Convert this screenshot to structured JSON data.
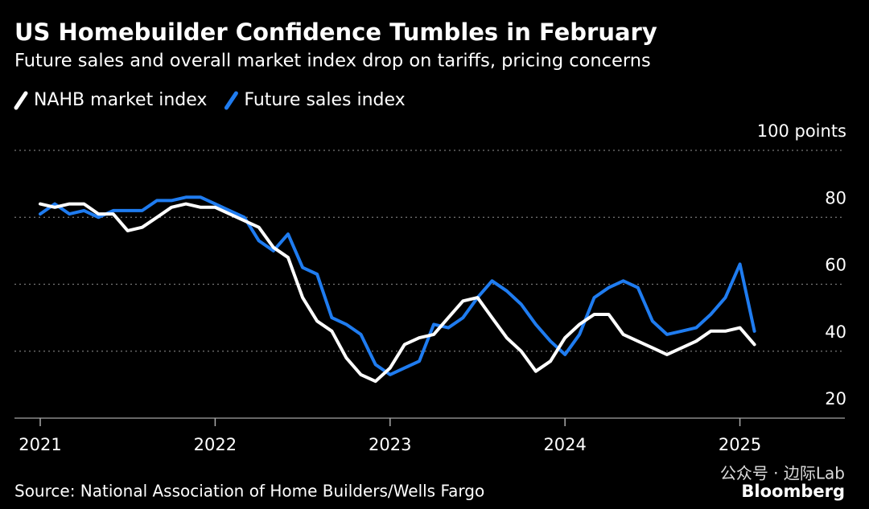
{
  "chart_data": {
    "type": "line",
    "title": "US Homebuilder Confidence Tumbles in February",
    "subtitle": "Future sales and overall market index drop on tariffs, pricing concerns",
    "source": "Source: National Association of Home Builders/Wells Fargo",
    "brand": "Bloomberg",
    "watermark": "公众号 · 边际Lab",
    "x": [
      2021.0,
      2021.083,
      2021.167,
      2021.25,
      2021.333,
      2021.417,
      2021.5,
      2021.583,
      2021.667,
      2021.75,
      2021.833,
      2021.917,
      2022.0,
      2022.083,
      2022.167,
      2022.25,
      2022.333,
      2022.417,
      2022.5,
      2022.583,
      2022.667,
      2022.75,
      2022.833,
      2022.917,
      2023.0,
      2023.083,
      2023.167,
      2023.25,
      2023.333,
      2023.417,
      2023.5,
      2023.583,
      2023.667,
      2023.75,
      2023.833,
      2023.917,
      2024.0,
      2024.083,
      2024.167,
      2024.25,
      2024.333,
      2024.417,
      2024.5,
      2024.583,
      2024.667,
      2024.75,
      2024.833,
      2024.917,
      2025.0,
      2025.083
    ],
    "xlim": [
      2020.85,
      2025.6
    ],
    "xticks": [
      2021,
      2022,
      2023,
      2024,
      2025
    ],
    "ylim": [
      20,
      100
    ],
    "yticks": [
      20,
      40,
      60,
      80,
      {
        "value": 100,
        "label": "100 points"
      }
    ],
    "grid": true,
    "series": [
      {
        "name": "NAHB market index",
        "color": "#ffffff",
        "values": [
          84,
          83,
          84,
          84,
          81,
          81,
          76,
          77,
          80,
          83,
          84,
          83,
          83,
          81,
          79,
          77,
          71,
          68,
          56,
          49,
          46,
          38,
          33,
          31,
          35,
          42,
          44,
          45,
          50,
          55,
          56,
          50,
          44,
          40,
          34,
          37,
          44,
          48,
          51,
          51,
          45,
          43,
          41,
          39,
          41,
          43,
          46,
          46,
          47,
          42
        ]
      },
      {
        "name": "Future sales index",
        "color": "#1f7cf0",
        "values": [
          81,
          84,
          81,
          82,
          80,
          82,
          82,
          82,
          85,
          85,
          86,
          86,
          84,
          82,
          80,
          73,
          70,
          75,
          65,
          63,
          50,
          48,
          45,
          36,
          33,
          35,
          37,
          48,
          47,
          50,
          56,
          61,
          58,
          54,
          48,
          43,
          39,
          45,
          56,
          59,
          61,
          59,
          49,
          45,
          46,
          47,
          51,
          56,
          66,
          46
        ]
      }
    ]
  }
}
